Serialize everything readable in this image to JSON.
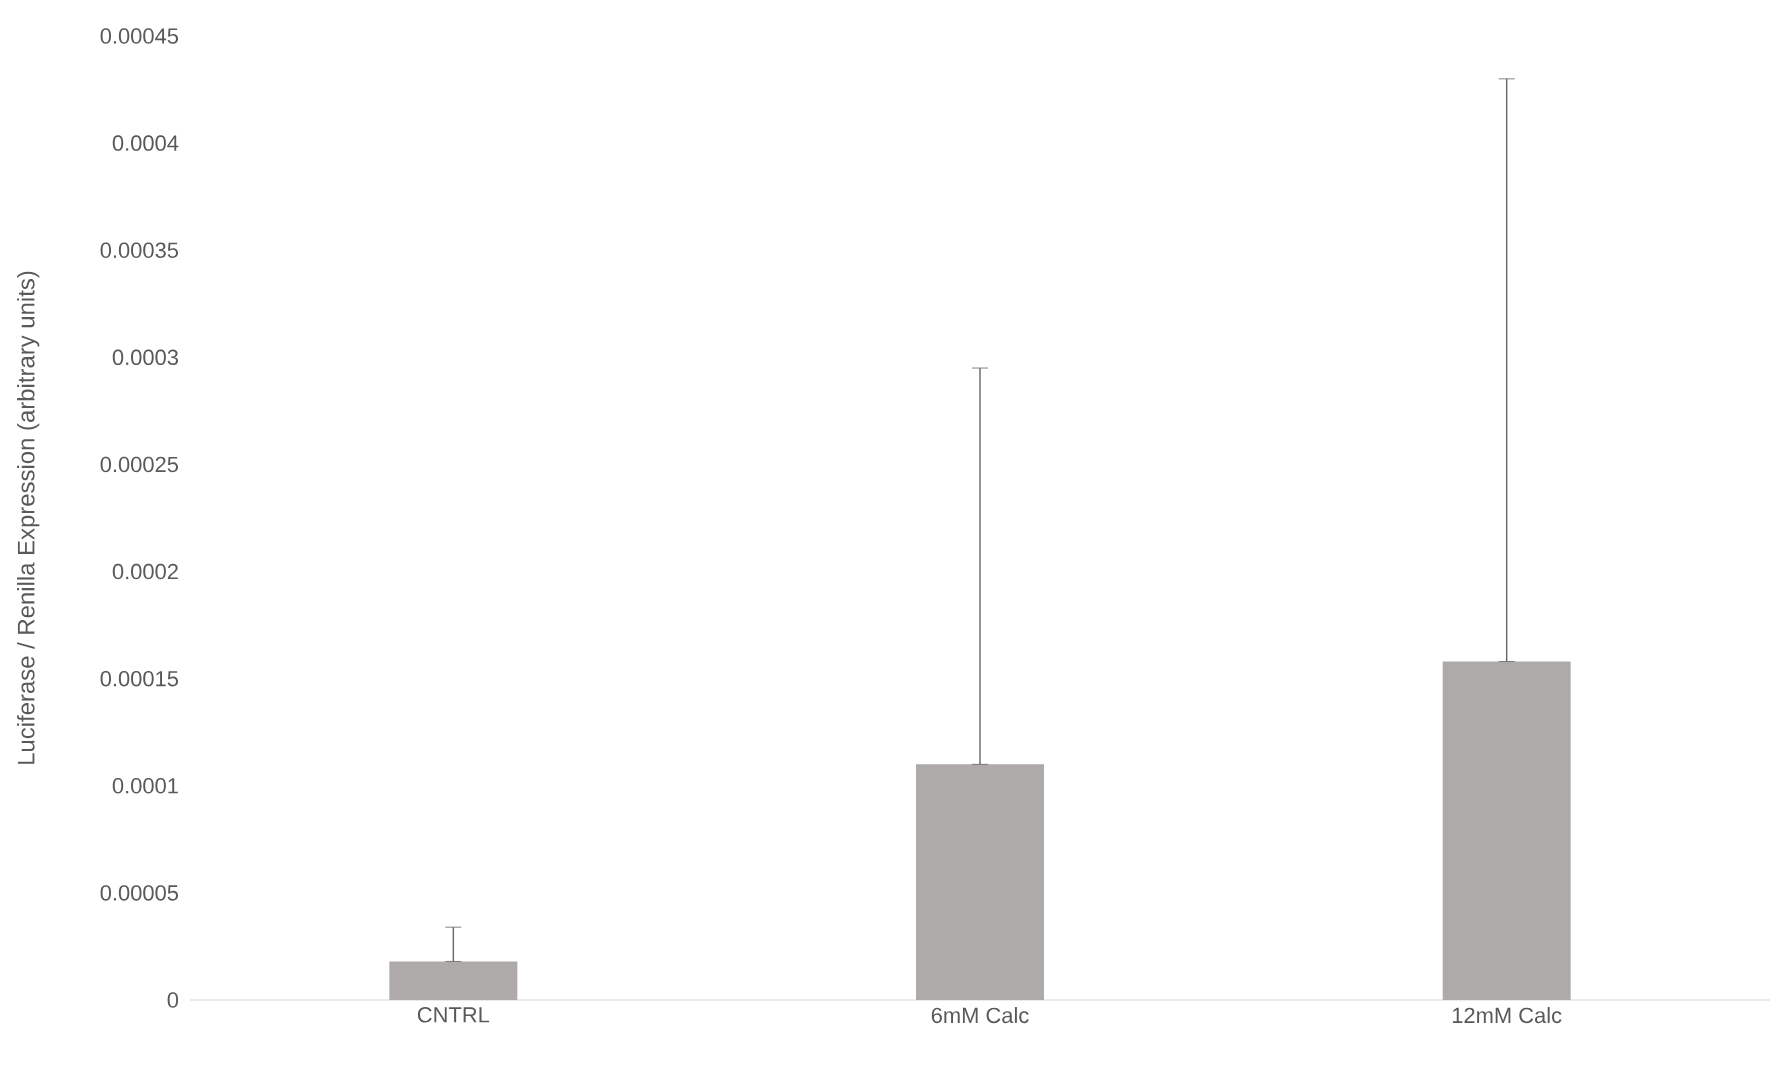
{
  "chart_data": {
    "type": "bar",
    "ylabel": "Luciferase / Renilla Expression (arbitrary units)",
    "categories": [
      "CNTRL",
      "6mM Calc",
      "12mM Calc"
    ],
    "values": [
      1.8e-05,
      0.00011,
      0.000158
    ],
    "errors": [
      [
        1.8e-05,
        3.4e-05
      ],
      [
        0.00011,
        0.000295
      ],
      [
        0.000158,
        0.00043
      ]
    ],
    "color": "#aeaaaa",
    "ylim": [
      0,
      0.00045
    ],
    "yticks": [
      0,
      {
        "value": 5e-05,
        "label": "0.00005"
      },
      0.0001,
      0.00015,
      0.0002,
      0.00025,
      0.0003,
      0.00035,
      0.0004,
      0.00045
    ],
    "grid": false
  }
}
